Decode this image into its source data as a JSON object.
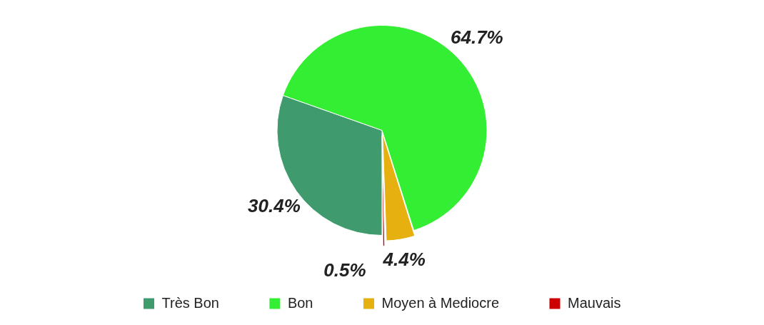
{
  "chart_data": {
    "type": "pie",
    "categories": [
      "Très Bon",
      "Bon",
      "Moyen à Mediocre",
      "Mauvais"
    ],
    "values": [
      30.4,
      64.7,
      4.4,
      0.5
    ],
    "colors": [
      "#3f9b6e",
      "#33ee33",
      "#e6b010",
      "#cc0000"
    ],
    "value_labels": [
      "30.4%",
      "64.7%",
      "4.4%",
      "0.5%"
    ],
    "legend": "bottom"
  }
}
